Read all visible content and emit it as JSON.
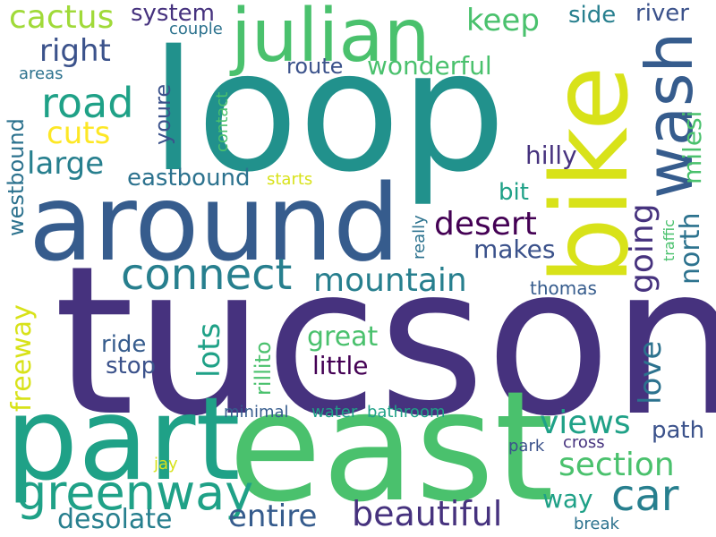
{
  "words": [
    {
      "text": "tucson",
      "color": "#46327e",
      "vertical": false
    },
    {
      "text": "loop",
      "color": "#21918c",
      "vertical": false
    },
    {
      "text": "around",
      "color": "#365c8d",
      "vertical": false
    },
    {
      "text": "east",
      "color": "#4ac16d",
      "vertical": false
    },
    {
      "text": "part",
      "color": "#1fa187",
      "vertical": false
    },
    {
      "text": "bike",
      "color": "#d8e219",
      "vertical": true
    },
    {
      "text": "julian",
      "color": "#4ac16d",
      "vertical": false
    },
    {
      "text": "wash",
      "color": "#365c8d",
      "vertical": true
    },
    {
      "text": "greenway",
      "color": "#1fa187",
      "vertical": false
    },
    {
      "text": "connect",
      "color": "#277f8e",
      "vertical": false
    },
    {
      "text": "car",
      "color": "#277f8e",
      "vertical": false
    },
    {
      "text": "road",
      "color": "#1fa187",
      "vertical": false
    },
    {
      "text": "cactus",
      "color": "#a0da39",
      "vertical": false
    },
    {
      "text": "beautiful",
      "color": "#46327e",
      "vertical": false
    },
    {
      "text": "entire",
      "color": "#365c8d",
      "vertical": false
    },
    {
      "text": "section",
      "color": "#4ac16d",
      "vertical": false
    },
    {
      "text": "mountain",
      "color": "#277f8e",
      "vertical": false
    },
    {
      "text": "desert",
      "color": "#440154",
      "vertical": false
    },
    {
      "text": "views",
      "color": "#1fa187",
      "vertical": false
    },
    {
      "text": "desolate",
      "color": "#277f8e",
      "vertical": false
    },
    {
      "text": "large",
      "color": "#277f8e",
      "vertical": false
    },
    {
      "text": "right",
      "color": "#3b528b",
      "vertical": false
    },
    {
      "text": "cuts",
      "color": "#fde725",
      "vertical": false
    },
    {
      "text": "keep",
      "color": "#4ac16d",
      "vertical": false
    },
    {
      "text": "going",
      "color": "#46327e",
      "vertical": true
    },
    {
      "text": "north",
      "color": "#2c728e",
      "vertical": true
    },
    {
      "text": "milesi",
      "color": "#4ac16d",
      "vertical": true
    },
    {
      "text": "love",
      "color": "#2c728e",
      "vertical": true
    },
    {
      "text": "lots",
      "color": "#1fa187",
      "vertical": true
    },
    {
      "text": "freeway",
      "color": "#d8e219",
      "vertical": true
    },
    {
      "text": "great",
      "color": "#4ac16d",
      "vertical": false
    },
    {
      "text": "little",
      "color": "#440154",
      "vertical": false
    },
    {
      "text": "ride",
      "color": "#365c8d",
      "vertical": false
    },
    {
      "text": "stop",
      "color": "#3b528b",
      "vertical": false
    },
    {
      "text": "makes",
      "color": "#3b528b",
      "vertical": false
    },
    {
      "text": "hilly",
      "color": "#46327e",
      "vertical": false
    },
    {
      "text": "bit",
      "color": "#1fa187",
      "vertical": false
    },
    {
      "text": "path",
      "color": "#3b528b",
      "vertical": false
    },
    {
      "text": "way",
      "color": "#1fa187",
      "vertical": false
    },
    {
      "text": "eastbound",
      "color": "#2c728e",
      "vertical": false
    },
    {
      "text": "westbound",
      "color": "#2c728e",
      "vertical": true
    },
    {
      "text": "route",
      "color": "#3b528b",
      "vertical": false
    },
    {
      "text": "wonderful",
      "color": "#4ac16d",
      "vertical": false
    },
    {
      "text": "youre",
      "color": "#3b528b",
      "vertical": true
    },
    {
      "text": "system",
      "color": "#46327e",
      "vertical": false
    },
    {
      "text": "side",
      "color": "#277f8e",
      "vertical": false
    },
    {
      "text": "river",
      "color": "#3b528b",
      "vertical": false
    },
    {
      "text": "rillito",
      "color": "#4ac16d",
      "vertical": true
    },
    {
      "text": "starts",
      "color": "#d8e219",
      "vertical": false
    },
    {
      "text": "couple",
      "color": "#2c728e",
      "vertical": false
    },
    {
      "text": "areas",
      "color": "#2c728e",
      "vertical": false
    },
    {
      "text": "contact",
      "color": "#4ac16d",
      "vertical": true
    },
    {
      "text": "really",
      "color": "#2c728e",
      "vertical": true
    },
    {
      "text": "traffic",
      "color": "#4ac16d",
      "vertical": true
    },
    {
      "text": "thomas",
      "color": "#365c8d",
      "vertical": false
    },
    {
      "text": "minimal",
      "color": "#365c8d",
      "vertical": false
    },
    {
      "text": "water",
      "color": "#1fa187",
      "vertical": false
    },
    {
      "text": "bathroom",
      "color": "#1fa187",
      "vertical": false
    },
    {
      "text": "park",
      "color": "#3b528b",
      "vertical": false
    },
    {
      "text": "cross",
      "color": "#46327e",
      "vertical": false
    },
    {
      "text": "jay",
      "color": "#d8e219",
      "vertical": false
    },
    {
      "text": "break",
      "color": "#2c728e",
      "vertical": false
    }
  ]
}
